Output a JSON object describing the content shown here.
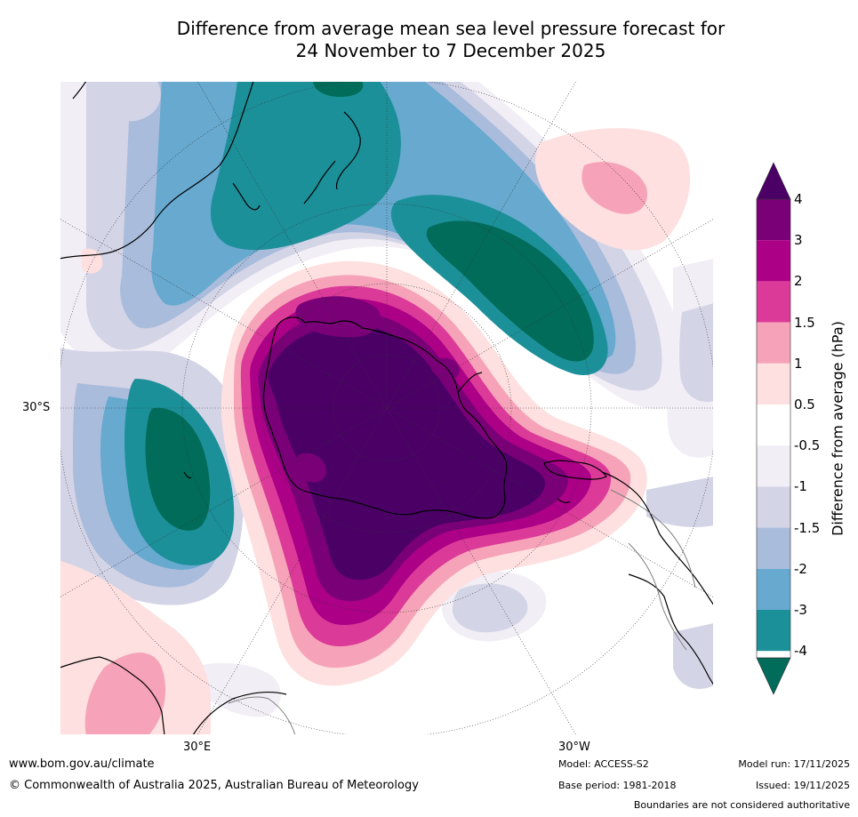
{
  "title": {
    "line1": "Difference from average mean sea level pressure forecast for",
    "line2": "24 November to 7 December 2025"
  },
  "map": {
    "projection": "south-polar-stereographic",
    "lat_label": "30°S",
    "lon_labels": {
      "east": "30°E",
      "west": "30°W"
    },
    "colors": {
      "land_outline": "#000000",
      "border_outline": "#7f7f7f",
      "graticule": "#333333"
    }
  },
  "colorbar": {
    "title": "Difference from average (hPa)",
    "tick_labels": [
      "4",
      "3",
      "2",
      "1.5",
      "1",
      "0.5",
      "-0.5",
      "-1",
      "-1.5",
      "-2",
      "-3",
      "-4"
    ],
    "bins_top_to_bottom": [
      {
        "range": "> 4",
        "color": "#4b0066"
      },
      {
        "range": "3 to 4",
        "color": "#7a0078"
      },
      {
        "range": "2 to 3",
        "color": "#ac0087"
      },
      {
        "range": "1.5 to 2",
        "color": "#dc3a98"
      },
      {
        "range": "1 to 1.5",
        "color": "#f6a3b9"
      },
      {
        "range": "0.5 to 1",
        "color": "#fde0df"
      },
      {
        "range": "-0.5 to 0.5",
        "color": "#ffffff"
      },
      {
        "range": "-1 to -0.5",
        "color": "#f1eef5"
      },
      {
        "range": "-1.5 to -1",
        "color": "#d4d4e7"
      },
      {
        "range": "-2 to -1.5",
        "color": "#a9bcdb"
      },
      {
        "range": "-3 to -2",
        "color": "#67a9cf"
      },
      {
        "range": "-4 to -3",
        "color": "#1c9099"
      },
      {
        "range": "< -4",
        "color": "#016c59"
      }
    ]
  },
  "footer": {
    "website": "www.bom.gov.au/climate",
    "copyright": "© Commonwealth of Australia 2025, Australian Bureau of Meteorology",
    "model": "Model: ACCESS-S2",
    "base_period": "Base period: 1981-2018",
    "model_run": "Model run: 17/11/2025",
    "issued": "Issued: 19/11/2025",
    "disclaimer": "Boundaries are not considered authoritative"
  }
}
